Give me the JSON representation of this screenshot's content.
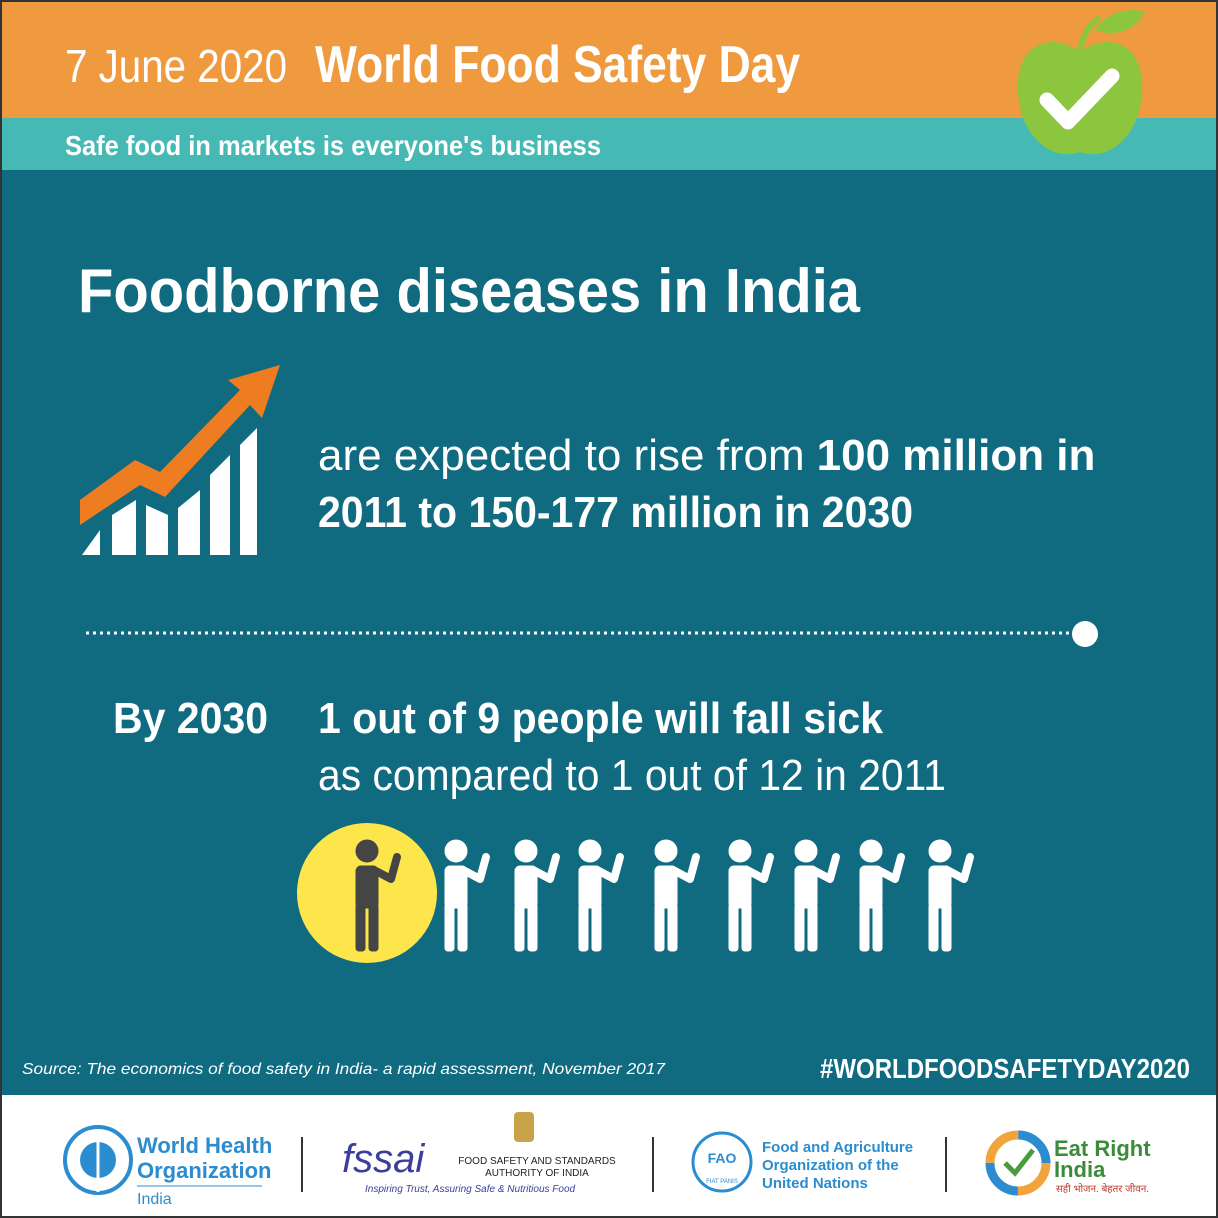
{
  "header": {
    "date": "7 June 2020",
    "title": "World Food Safety Day",
    "theme": "Safe food in markets is everyone's business"
  },
  "heading": "Foodborne diseases in India",
  "rise": {
    "lead": "are expected to rise from",
    "highlight": [
      "100 million in",
      "2011 to 150-177 million in 2030"
    ]
  },
  "ratio": {
    "label": "By 2030",
    "highlight": "1 out of 9 people will fall sick",
    "comparison": "as compared to 1 out of 12 in 2011"
  },
  "source": "Source: The economics of food safety in India- a rapid assessment, November 2017",
  "hashtag": "#WORLDFOODSAFETYDAY2020",
  "logos": {
    "who": {
      "name": [
        "World Health",
        "Organization"
      ],
      "country": "India"
    },
    "fssai": {
      "mark": "fssai",
      "name": [
        "FOOD SAFETY AND STANDARDS",
        "AUTHORITY OF INDIA"
      ],
      "tagline": "Inspiring Trust, Assuring Safe & Nutritious Food"
    },
    "fao": {
      "mark": "FAO",
      "motto": "FIAT PANIS",
      "name": [
        "Food and Agriculture",
        "Organization of the",
        "United Nations"
      ]
    },
    "eat_right": {
      "name": [
        "Eat Right",
        "India"
      ],
      "tagline": "सही भोजन. बेहतर जीवन."
    }
  }
}
